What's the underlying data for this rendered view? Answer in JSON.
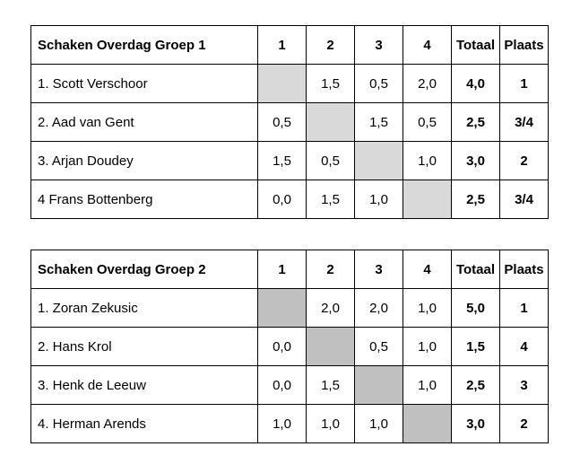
{
  "tables": [
    {
      "title": "Schaken Overdag Groep 1",
      "columns": [
        "1",
        "2",
        "3",
        "4",
        "Totaal",
        "Plaats"
      ],
      "blank_color": "#d9d9d9",
      "rows": [
        {
          "name": "1. Scott Verschoor",
          "scores": [
            "",
            "1,5",
            "0,5",
            "2,0"
          ],
          "totaal": "4,0",
          "plaats": "1"
        },
        {
          "name": "2. Aad van Gent",
          "scores": [
            "0,5",
            "",
            "1,5",
            "0,5"
          ],
          "totaal": "2,5",
          "plaats": "3/4"
        },
        {
          "name": "3. Arjan Doudey",
          "scores": [
            "1,5",
            "0,5",
            "",
            "1,0"
          ],
          "totaal": "3,0",
          "plaats": "2"
        },
        {
          "name": "4 Frans Bottenberg",
          "scores": [
            "0,0",
            "1,5",
            "1,0",
            ""
          ],
          "totaal": "2,5",
          "plaats": "3/4"
        }
      ]
    },
    {
      "title": "Schaken Overdag Groep 2",
      "columns": [
        "1",
        "2",
        "3",
        "4",
        "Totaal",
        "Plaats"
      ],
      "blank_color": "#c0c0c0",
      "rows": [
        {
          "name": "1. Zoran Zekusic",
          "scores": [
            "",
            "2,0",
            "2,0",
            "1,0"
          ],
          "totaal": "5,0",
          "plaats": "1"
        },
        {
          "name": "2. Hans Krol",
          "scores": [
            "0,0",
            "",
            "0,5",
            "1,0"
          ],
          "totaal": "1,5",
          "plaats": "4"
        },
        {
          "name": "3. Henk de Leeuw",
          "scores": [
            "0,0",
            "1,5",
            "",
            "1,0"
          ],
          "totaal": "2,5",
          "plaats": "3"
        },
        {
          "name": "4. Herman Arends",
          "scores": [
            "1,0",
            "1,0",
            "1,0",
            ""
          ],
          "totaal": "3,0",
          "plaats": "2"
        }
      ]
    }
  ]
}
